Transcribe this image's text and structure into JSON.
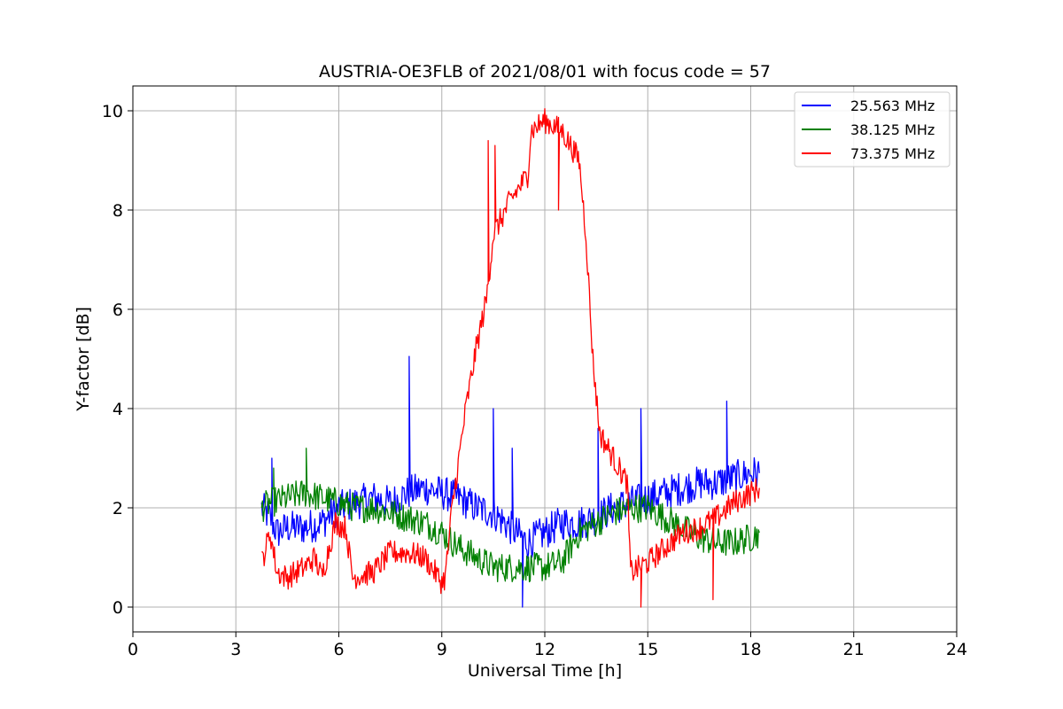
{
  "chart_data": {
    "type": "line",
    "title": "AUSTRIA-OE3FLB of 2021/08/01 with focus code = 57",
    "xlabel": "Universal Time [h]",
    "ylabel": "Y-factor [dB]",
    "xlim": [
      0,
      24
    ],
    "ylim": [
      -0.5,
      10.5
    ],
    "xticks": [
      0,
      3,
      6,
      9,
      12,
      15,
      18,
      21,
      24
    ],
    "yticks": [
      0,
      2,
      4,
      6,
      8,
      10
    ],
    "grid": true,
    "legend_position": "top-right",
    "series": [
      {
        "name": "25.563 MHz",
        "color": "#0000ff",
        "points": [
          [
            3.75,
            2.0
          ],
          [
            4.0,
            1.8
          ],
          [
            4.2,
            1.5
          ],
          [
            4.5,
            1.6
          ],
          [
            5.0,
            1.6
          ],
          [
            5.5,
            1.7
          ],
          [
            6.0,
            2.0
          ],
          [
            6.5,
            2.1
          ],
          [
            7.0,
            2.2
          ],
          [
            7.5,
            2.1
          ],
          [
            8.0,
            2.3
          ],
          [
            8.5,
            2.4
          ],
          [
            9.0,
            2.3
          ],
          [
            9.5,
            2.2
          ],
          [
            10.0,
            2.0
          ],
          [
            10.5,
            1.9
          ],
          [
            11.0,
            1.6
          ],
          [
            11.5,
            1.3
          ],
          [
            12.0,
            1.5
          ],
          [
            12.5,
            1.7
          ],
          [
            13.0,
            1.7
          ],
          [
            13.5,
            1.8
          ],
          [
            14.0,
            2.0
          ],
          [
            14.5,
            2.1
          ],
          [
            15.0,
            2.2
          ],
          [
            15.5,
            2.3
          ],
          [
            16.0,
            2.4
          ],
          [
            16.5,
            2.5
          ],
          [
            17.0,
            2.5
          ],
          [
            17.5,
            2.6
          ],
          [
            18.0,
            2.7
          ],
          [
            18.25,
            2.7
          ]
        ],
        "spikes": [
          [
            4.05,
            3.0
          ],
          [
            8.05,
            5.05
          ],
          [
            10.5,
            4.0
          ],
          [
            11.05,
            3.2
          ],
          [
            13.55,
            3.6
          ],
          [
            14.8,
            4.0
          ],
          [
            17.3,
            4.15
          ],
          [
            11.35,
            0.0
          ]
        ]
      },
      {
        "name": "38.125 MHz",
        "color": "#008000",
        "points": [
          [
            3.75,
            2.0
          ],
          [
            4.0,
            2.1
          ],
          [
            4.5,
            2.2
          ],
          [
            5.0,
            2.3
          ],
          [
            5.5,
            2.2
          ],
          [
            6.0,
            2.1
          ],
          [
            6.5,
            2.0
          ],
          [
            7.0,
            2.0
          ],
          [
            7.5,
            1.9
          ],
          [
            8.0,
            1.8
          ],
          [
            8.5,
            1.7
          ],
          [
            9.0,
            1.5
          ],
          [
            9.5,
            1.2
          ],
          [
            10.0,
            1.0
          ],
          [
            10.5,
            0.8
          ],
          [
            11.0,
            0.8
          ],
          [
            11.5,
            0.8
          ],
          [
            12.0,
            0.8
          ],
          [
            12.5,
            0.9
          ],
          [
            13.0,
            1.5
          ],
          [
            13.5,
            1.7
          ],
          [
            14.0,
            1.9
          ],
          [
            14.5,
            2.0
          ],
          [
            15.0,
            2.0
          ],
          [
            15.5,
            1.8
          ],
          [
            16.0,
            1.6
          ],
          [
            16.5,
            1.4
          ],
          [
            17.0,
            1.3
          ],
          [
            17.5,
            1.3
          ],
          [
            18.0,
            1.4
          ],
          [
            18.25,
            1.5
          ]
        ],
        "spikes": [
          [
            5.05,
            3.2
          ],
          [
            4.1,
            2.8
          ]
        ]
      },
      {
        "name": "73.375 MHz",
        "color": "#ff0000",
        "points": [
          [
            3.75,
            0.9
          ],
          [
            4.0,
            1.5
          ],
          [
            4.2,
            0.7
          ],
          [
            4.5,
            0.6
          ],
          [
            5.0,
            0.8
          ],
          [
            5.3,
            1.0
          ],
          [
            5.5,
            0.6
          ],
          [
            5.9,
            1.7
          ],
          [
            6.2,
            1.6
          ],
          [
            6.4,
            0.6
          ],
          [
            7.0,
            0.7
          ],
          [
            7.5,
            1.1
          ],
          [
            8.0,
            1.1
          ],
          [
            8.5,
            1.0
          ],
          [
            9.0,
            0.5
          ],
          [
            9.1,
            0.6
          ],
          [
            9.3,
            2.0
          ],
          [
            9.5,
            3.0
          ],
          [
            9.7,
            4.0
          ],
          [
            10.0,
            5.2
          ],
          [
            10.3,
            6.2
          ],
          [
            10.5,
            7.5
          ],
          [
            11.0,
            8.2
          ],
          [
            11.5,
            8.7
          ],
          [
            11.6,
            9.6
          ],
          [
            12.0,
            9.8
          ],
          [
            12.5,
            9.6
          ],
          [
            13.0,
            9.0
          ],
          [
            13.2,
            7.5
          ],
          [
            13.4,
            5.0
          ],
          [
            13.6,
            3.5
          ],
          [
            14.0,
            3.0
          ],
          [
            14.4,
            2.5
          ],
          [
            14.5,
            0.7
          ],
          [
            15.0,
            0.9
          ],
          [
            15.5,
            1.2
          ],
          [
            16.0,
            1.5
          ],
          [
            16.5,
            1.6
          ],
          [
            17.0,
            1.8
          ],
          [
            17.5,
            2.1
          ],
          [
            18.0,
            2.3
          ],
          [
            18.25,
            2.4
          ]
        ],
        "spikes": [
          [
            10.35,
            9.4
          ],
          [
            10.55,
            9.3
          ],
          [
            12.4,
            8.0
          ],
          [
            14.8,
            0.0
          ],
          [
            16.9,
            0.15
          ]
        ]
      }
    ]
  }
}
